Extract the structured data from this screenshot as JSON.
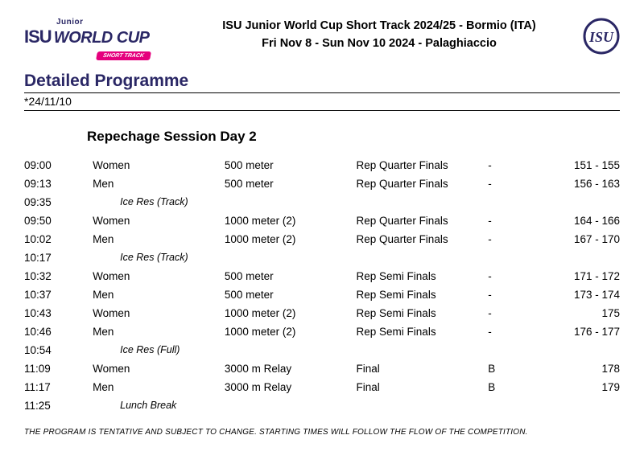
{
  "header": {
    "title_line1": "ISU Junior World Cup Short Track 2024/25 - Bormio (ITA)",
    "title_line2": "Fri Nov 8 - Sun Nov 10 2024 - Palaghiaccio",
    "logo_junior": "Junior",
    "logo_isu": "ISU",
    "logo_worldcup": "WORLD CUP",
    "logo_shorttrack": "SHORT TRACK"
  },
  "section_title": "Detailed Programme",
  "date_label": "*24/11/10",
  "session_title": "Repechage Session Day 2",
  "footnote": "THE PROGRAM IS TENTATIVE AND SUBJECT TO CHANGE. STARTING TIMES WILL FOLLOW THE FLOW OF THE COMPETITION.",
  "schedule": [
    {
      "time": "09:00",
      "cat": "Women",
      "dist": "500 meter",
      "phase": "Rep Quarter Finals",
      "g": "-",
      "race": "151 - 155",
      "break": false
    },
    {
      "time": "09:13",
      "cat": "Men",
      "dist": "500 meter",
      "phase": "Rep Quarter Finals",
      "g": "-",
      "race": "156 - 163",
      "break": false
    },
    {
      "time": "09:35",
      "cat": "Ice Res (Track)",
      "dist": "",
      "phase": "",
      "g": "",
      "race": "",
      "break": true
    },
    {
      "time": "09:50",
      "cat": "Women",
      "dist": "1000 meter (2)",
      "phase": "Rep Quarter Finals",
      "g": "-",
      "race": "164 - 166",
      "break": false
    },
    {
      "time": "10:02",
      "cat": "Men",
      "dist": "1000 meter (2)",
      "phase": "Rep Quarter Finals",
      "g": "-",
      "race": "167 - 170",
      "break": false
    },
    {
      "time": "10:17",
      "cat": "Ice Res (Track)",
      "dist": "",
      "phase": "",
      "g": "",
      "race": "",
      "break": true
    },
    {
      "time": "10:32",
      "cat": "Women",
      "dist": "500 meter",
      "phase": "Rep Semi Finals",
      "g": "-",
      "race": "171 - 172",
      "break": false
    },
    {
      "time": "10:37",
      "cat": "Men",
      "dist": "500 meter",
      "phase": "Rep Semi Finals",
      "g": "-",
      "race": "173 - 174",
      "break": false
    },
    {
      "time": "10:43",
      "cat": "Women",
      "dist": "1000 meter (2)",
      "phase": "Rep Semi Finals",
      "g": "-",
      "race": "175",
      "break": false
    },
    {
      "time": "10:46",
      "cat": "Men",
      "dist": "1000 meter (2)",
      "phase": "Rep Semi Finals",
      "g": "-",
      "race": "176 - 177",
      "break": false
    },
    {
      "time": "10:54",
      "cat": "Ice Res (Full)",
      "dist": "",
      "phase": "",
      "g": "",
      "race": "",
      "break": true
    },
    {
      "time": "11:09",
      "cat": "Women",
      "dist": "3000 m Relay",
      "phase": "Final",
      "g": "B",
      "race": "178",
      "break": false
    },
    {
      "time": "11:17",
      "cat": "Men",
      "dist": "3000 m Relay",
      "phase": "Final",
      "g": "B",
      "race": "179",
      "break": false
    },
    {
      "time": "11:25",
      "cat": "Lunch Break",
      "dist": "",
      "phase": "",
      "g": "",
      "race": "",
      "break": true
    }
  ]
}
